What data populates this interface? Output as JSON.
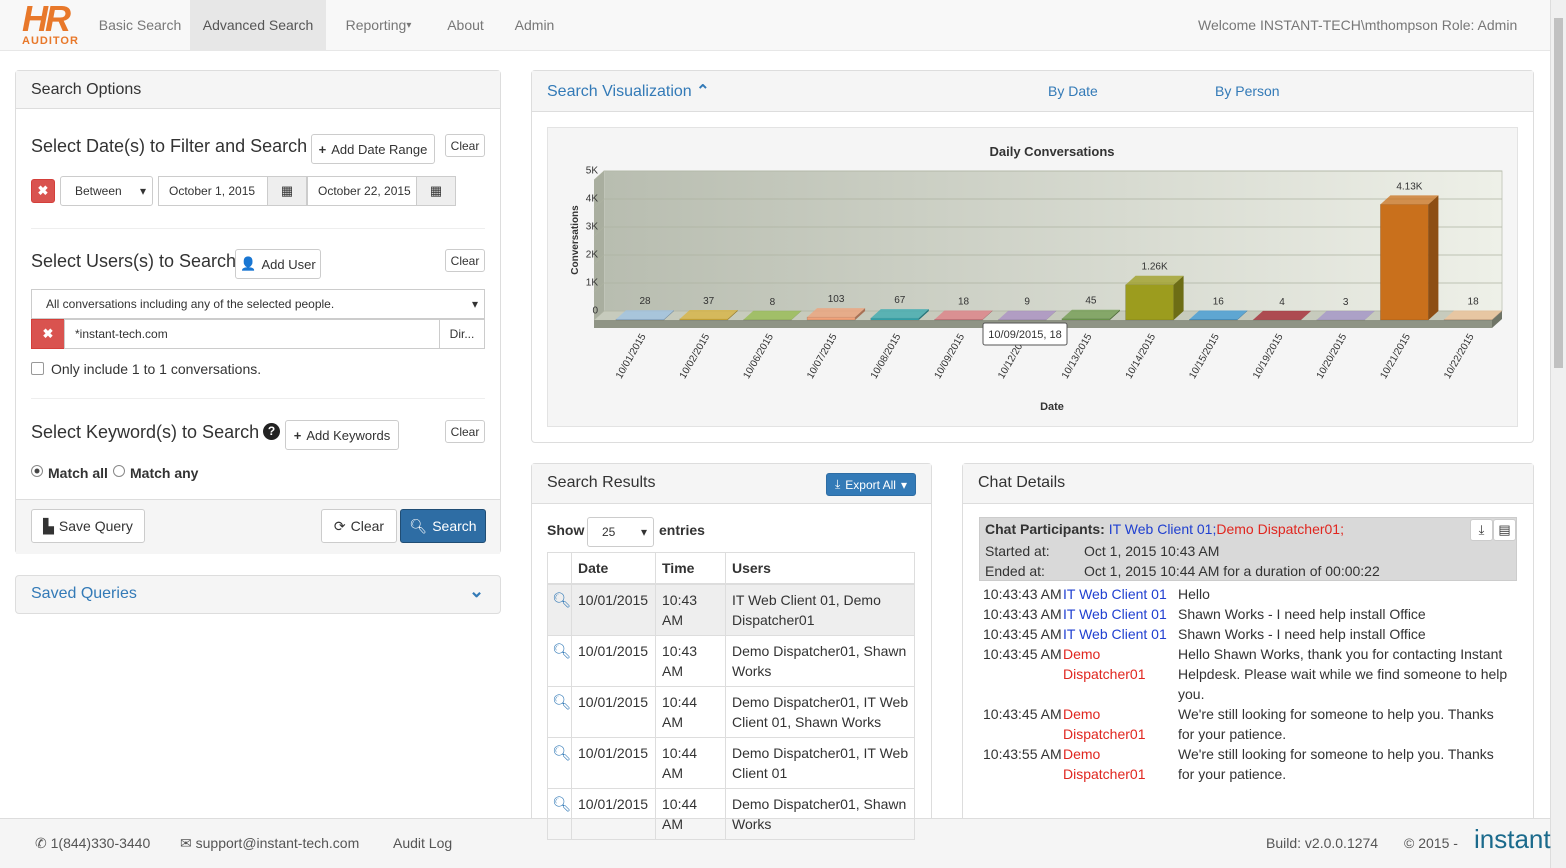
{
  "nav": {
    "logo_top": "HR",
    "logo_bottom": "AUDITOR",
    "items": [
      "Basic Search",
      "Advanced Search",
      "Reporting",
      "About",
      "Admin"
    ],
    "welcome": "Welcome INSTANT-TECH\\mthompson Role: Admin"
  },
  "search_options": {
    "title": "Search Options",
    "dates": {
      "heading": "Select Date(s) to Filter and Search",
      "add": "Add Date Range",
      "clear": "Clear",
      "operator": "Between",
      "from": "October 1, 2015",
      "to": "October 22, 2015"
    },
    "users": {
      "heading": "Select Users(s) to Search",
      "add": "Add User",
      "clear": "Clear",
      "mode": "All conversations including any of the selected people.",
      "user": "*instant-tech.com",
      "dir": "Dir...",
      "one_to_one": "Only include 1 to 1 conversations."
    },
    "keywords": {
      "heading": "Select Keyword(s) to Search",
      "add": "Add Keywords",
      "clear": "Clear",
      "match_all": "Match all",
      "match_any": "Match any"
    },
    "actions": {
      "save": "Save Query",
      "clear": "Clear",
      "search": "Search"
    }
  },
  "saved_queries": "Saved Queries",
  "visualization": {
    "title": "Search Visualization",
    "tabs": [
      "By Date",
      "By Person"
    ]
  },
  "chart_data": {
    "type": "bar",
    "title": "Daily Conversations",
    "x_label": "Date",
    "y_label": "Conversations",
    "categories": [
      "10/01/2015",
      "10/02/2015",
      "10/06/2015",
      "10/07/2015",
      "10/08/2015",
      "10/09/2015",
      "10/12/2015",
      "10/13/2015",
      "10/14/2015",
      "10/15/2015",
      "10/19/2015",
      "10/20/2015",
      "10/21/2015",
      "10/22/2015"
    ],
    "values": [
      28,
      37,
      8,
      103,
      67,
      18,
      9,
      45,
      1260,
      16,
      4,
      3,
      4130,
      18
    ],
    "value_labels": [
      "28",
      "37",
      "8",
      "103",
      "67",
      "18",
      "9",
      "45",
      "1.26K",
      "16",
      "4",
      "3",
      "4.13K",
      "18"
    ],
    "colors": [
      "#9ec3e6",
      "#d9b33c",
      "#94bb4c",
      "#f0a27a",
      "#36a9b0",
      "#e07c84",
      "#a98ec6",
      "#6f9b4e",
      "#9c9c1e",
      "#3b9ad9",
      "#a4202e",
      "#a393cb",
      "#c9701c",
      "#f2c49a"
    ],
    "ylim": [
      0,
      5000
    ],
    "yticks": [
      0,
      {
        "value": 1000,
        "label": "1K"
      },
      {
        "value": 2000,
        "label": "2K"
      },
      {
        "value": 3000,
        "label": "3K"
      },
      {
        "value": 4000,
        "label": "4K"
      },
      {
        "value": 5000,
        "label": "5K"
      }
    ],
    "grid": true,
    "tooltip": "10/09/2015, 18"
  },
  "results": {
    "title": "Search Results",
    "export": "Export All",
    "show": "Show",
    "page_size": "25",
    "entries": "entries",
    "columns": [
      "Date",
      "Time",
      "Users"
    ],
    "rows": [
      [
        "10/01/2015",
        "10:43 AM",
        "IT Web Client 01, Demo Dispatcher01"
      ],
      [
        "10/01/2015",
        "10:43 AM",
        "Demo Dispatcher01, Shawn Works"
      ],
      [
        "10/01/2015",
        "10:44 AM",
        "Demo Dispatcher01, IT Web Client 01, Shawn Works"
      ],
      [
        "10/01/2015",
        "10:44 AM",
        "Demo Dispatcher01, IT Web Client 01"
      ],
      [
        "10/01/2015",
        "10:44 AM",
        "Demo Dispatcher01, Shawn Works"
      ]
    ]
  },
  "chat": {
    "title": "Chat Details",
    "participants_label": "Chat Participants:",
    "participants": [
      "IT Web Client 01;",
      "Demo Dispatcher01;"
    ],
    "started_label": "Started at:",
    "started": "Oct 1, 2015 10:43 AM",
    "ended_label": "Ended at:",
    "ended": "Oct 1, 2015 10:44 AM for a duration of 00:00:22",
    "messages": [
      {
        "time": "10:43:43 AM",
        "from": "IT Web Client 01",
        "text": "Hello"
      },
      {
        "time": "10:43:43 AM",
        "from": "IT Web Client 01",
        "text": "Shawn Works - I need help install Office"
      },
      {
        "time": "10:43:45 AM",
        "from": "IT Web Client 01",
        "text": "Shawn Works - I need help install Office"
      },
      {
        "time": "10:43:45 AM",
        "from": "Demo Dispatcher01",
        "text": "Hello Shawn Works, thank you for contacting Instant Helpdesk. Please wait while we find someone to help you."
      },
      {
        "time": "10:43:45 AM",
        "from": "Demo Dispatcher01",
        "text": "We're still looking for someone to help you. Thanks for your patience."
      },
      {
        "time": "10:43:55 AM",
        "from": "Demo Dispatcher01",
        "text": "We're still looking for someone to help you. Thanks for your patience."
      }
    ]
  },
  "footer": {
    "phone": "1(844)330-3440",
    "email": "support@instant-tech.com",
    "audit": "Audit Log",
    "build": "Build: v2.0.0.1274",
    "copyright": "© 2015 -",
    "brand": "instant"
  }
}
